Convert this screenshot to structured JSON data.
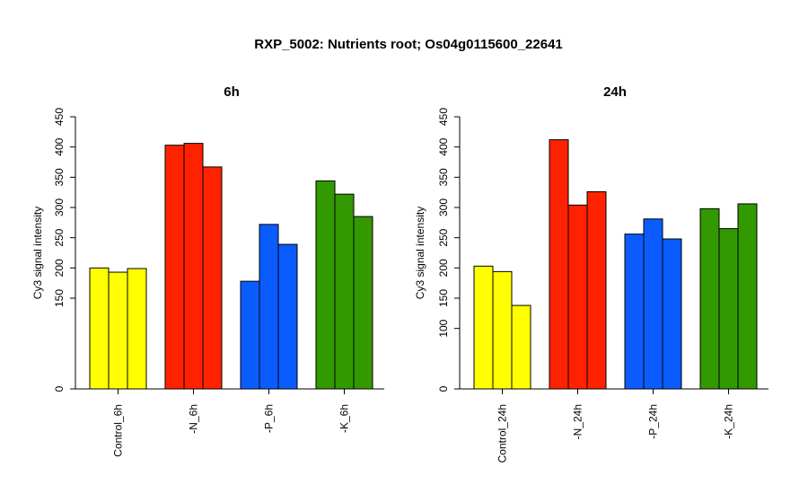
{
  "chart_data": {
    "type": "bar",
    "title": "RXP_5002: Nutrients root; Os04g0115600_22641",
    "panels": [
      {
        "title": "6h",
        "ylabel": "Cy3 signal intensity",
        "ylim": [
          0,
          450
        ],
        "yticks": [
          0,
          150,
          200,
          250,
          300,
          350,
          400,
          450
        ],
        "groups": [
          {
            "label": "Control_6h",
            "color": "#ffff00",
            "values": [
              200,
              193,
              199
            ]
          },
          {
            "label": "-N_6h",
            "color": "#ff2200",
            "values": [
              403,
              406,
              367
            ]
          },
          {
            "label": "-P_6h",
            "color": "#0b5cff",
            "values": [
              178,
              272,
              239
            ]
          },
          {
            "label": "-K_6h",
            "color": "#339900",
            "values": [
              344,
              322,
              285
            ]
          }
        ]
      },
      {
        "title": "24h",
        "ylabel": "Cy3 signal intensity",
        "ylim": [
          0,
          450
        ],
        "yticks": [
          0,
          100,
          150,
          200,
          250,
          300,
          350,
          400,
          450
        ],
        "groups": [
          {
            "label": "Control_24h",
            "color": "#ffff00",
            "values": [
              203,
              194,
              138
            ]
          },
          {
            "label": "-N_24h",
            "color": "#ff2200",
            "values": [
              412,
              304,
              326
            ]
          },
          {
            "label": "-P_24h",
            "color": "#0b5cff",
            "values": [
              256,
              281,
              248
            ]
          },
          {
            "label": "-K_24h",
            "color": "#339900",
            "values": [
              298,
              265,
              306
            ]
          }
        ]
      }
    ]
  }
}
